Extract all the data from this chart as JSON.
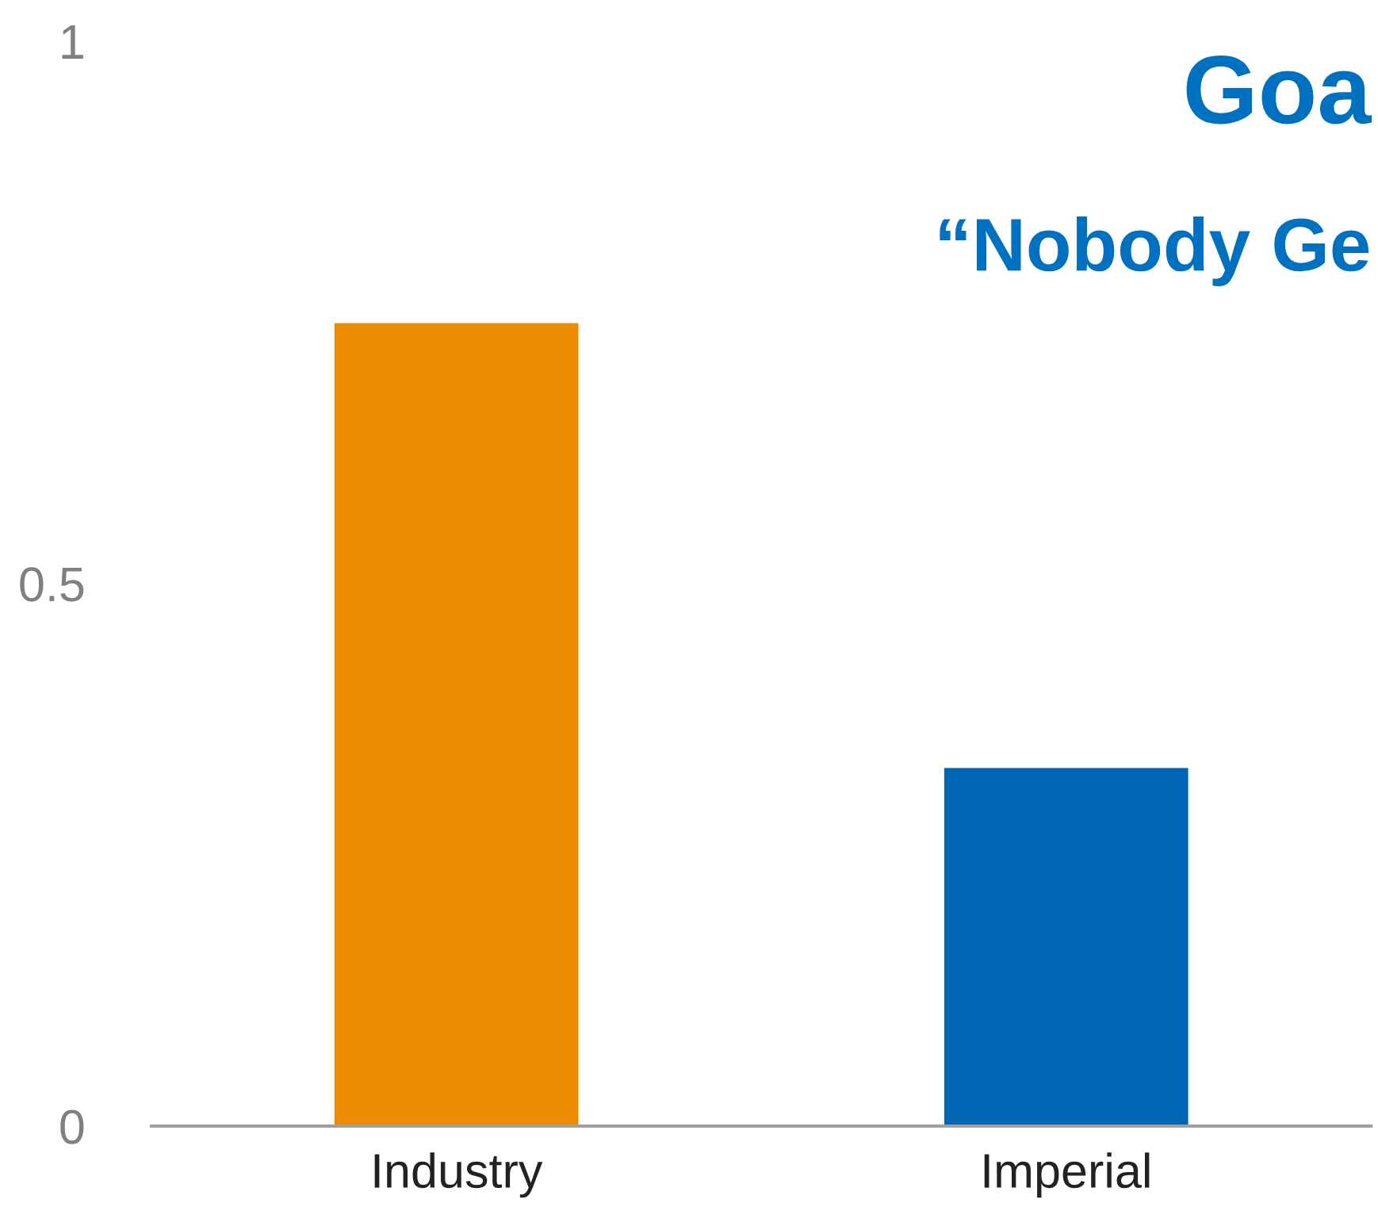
{
  "chart_data": {
    "type": "bar",
    "title": "Goa",
    "subtitle": "“Nobody Ge",
    "categories": [
      "Industry",
      "Imperial"
    ],
    "values": [
      0.74,
      0.33
    ],
    "colors": [
      "#eb8b00",
      "#0066b3"
    ],
    "ylim": [
      0,
      1
    ],
    "yticks": [
      0,
      0.5,
      1
    ],
    "grid": false,
    "legend": false
  }
}
